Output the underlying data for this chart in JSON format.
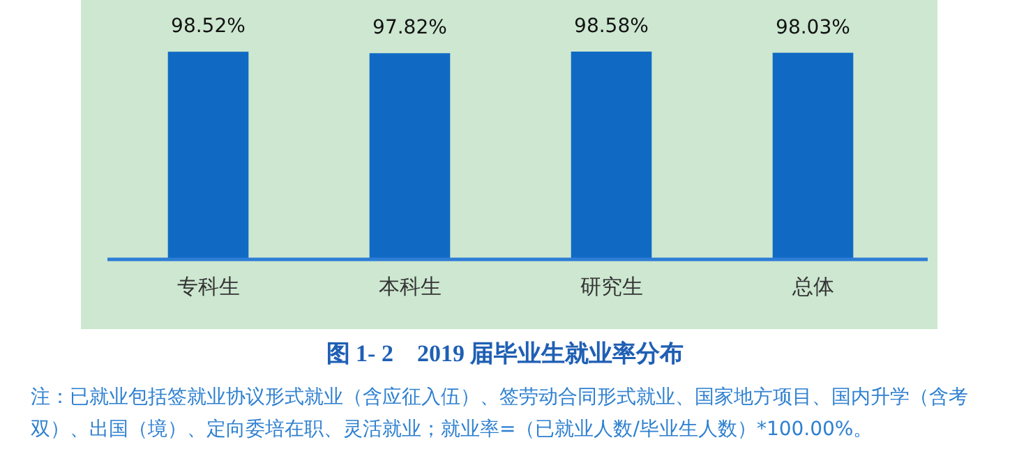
{
  "chart_data": {
    "type": "bar",
    "title": "图 1- 2　2019 届毕业生就业率分布",
    "categories": [
      "专科生",
      "本科生",
      "研究生",
      "总体"
    ],
    "values": [
      98.52,
      97.82,
      98.58,
      98.03
    ],
    "value_labels": [
      "98.52%",
      "97.82%",
      "98.58%",
      "98.03%"
    ],
    "color": "#106ac4",
    "annotations": [
      "注：已就业包括签就业协议形式就业（含应征入伍）、签劳动合同形式就业、国家地方项目、国内升学（含考双）、出国（境）、定向委培在职、灵活就业；就业率=（已就业人数/毕业生人数）*100.00%。"
    ]
  }
}
